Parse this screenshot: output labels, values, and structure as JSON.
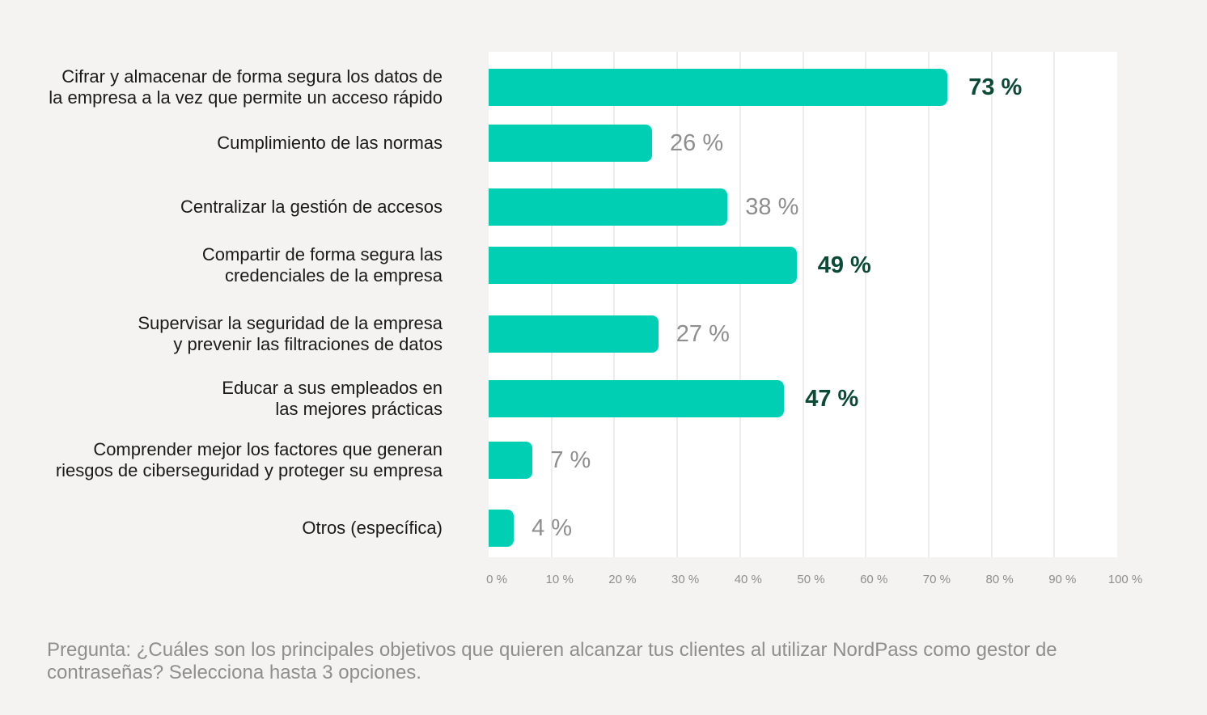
{
  "chart_data": {
    "type": "bar",
    "orientation": "horizontal",
    "categories": [
      [
        "Cifrar y almacenar de forma segura los datos de",
        "la empresa a la vez que permite un acceso rápido"
      ],
      [
        "Cumplimiento de las normas"
      ],
      [
        "Centralizar la gestión de accesos"
      ],
      [
        "Compartir de forma segura las",
        "credenciales de la empresa"
      ],
      [
        "Supervisar la seguridad de la empresa",
        "y prevenir las filtraciones de datos"
      ],
      [
        "Educar a sus empleados en",
        "las mejores prácticas"
      ],
      [
        "Comprender mejor los factores que generan",
        "riesgos de ciberseguridad y proteger su empresa"
      ],
      [
        "Otros (específica)"
      ]
    ],
    "values": [
      73,
      26,
      38,
      49,
      27,
      47,
      7,
      4
    ],
    "value_labels": [
      "73 %",
      "26 %",
      "38 %",
      "49 %",
      "27 %",
      "47 %",
      "7 %",
      "4 %"
    ],
    "highlighted": [
      true,
      false,
      false,
      true,
      false,
      true,
      false,
      false
    ],
    "xlim": [
      0,
      100
    ],
    "x_ticks": [
      "0 %",
      "10 %",
      "20 %",
      "30 %",
      "40 %",
      "50 %",
      "60 %",
      "70 %",
      "80 %",
      "90 %",
      "100 %"
    ],
    "grid": true,
    "colors": {
      "bar": "#00cfb4",
      "highlight_label": "#0b4a35",
      "muted_label": "#8e8e8e"
    }
  },
  "question": "Pregunta: ¿Cuáles son los principales objetivos que quieren alcanzar tus clientes al utilizar NordPass como gestor de contraseñas? Selecciona hasta 3 opciones."
}
